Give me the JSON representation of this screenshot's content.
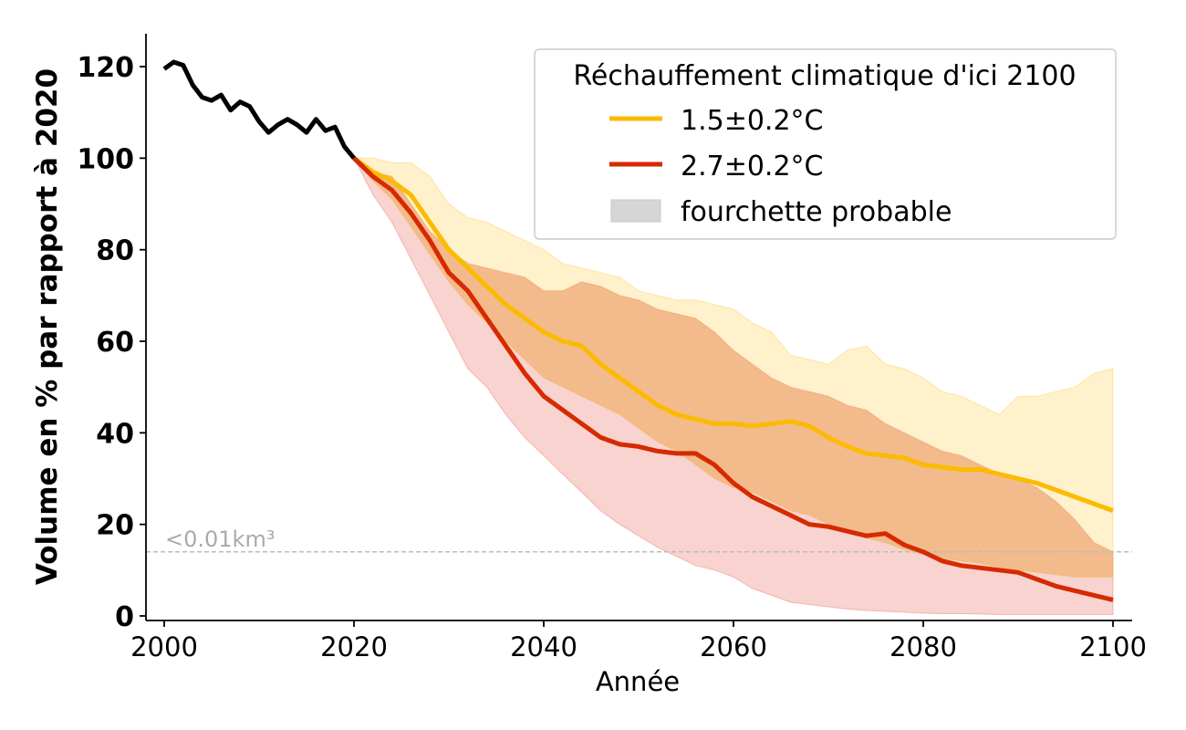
{
  "chart_data": {
    "type": "line",
    "title": "",
    "xlabel": "Année",
    "ylabel": "Volume en % par rapport à 2020",
    "xlim": [
      1998,
      2102
    ],
    "ylim": [
      -1,
      127
    ],
    "xticks": [
      2000,
      2020,
      2040,
      2060,
      2080,
      2100
    ],
    "xtick_labels": [
      "2000",
      "2020",
      "2040",
      "2060",
      "2080",
      "2100"
    ],
    "yticks": [
      0,
      20,
      40,
      60,
      80,
      100,
      120
    ],
    "ytick_labels": [
      "0",
      "20",
      "40",
      "60",
      "80",
      "100",
      "120"
    ],
    "grid": false,
    "legend": {
      "placement": "top-right",
      "title": "Réchauffement climatique d'ici 2100",
      "entries": [
        {
          "label": "1.5±0.2°C",
          "kind": "line",
          "color": "#fbbb00"
        },
        {
          "label": "2.7±0.2°C",
          "kind": "line",
          "color": "#d62a00"
        },
        {
          "label": "fourchette probable",
          "kind": "patch",
          "color": "#d6d6d6"
        }
      ]
    },
    "annotation": {
      "text": "<0.01km³",
      "threshold_value": 14,
      "line_color": "#bbbbbb",
      "text_color": "#aaaaaa"
    },
    "historical": {
      "name": "historique",
      "color": "#000000",
      "x": [
        2000,
        2001,
        2002,
        2003,
        2004,
        2005,
        2006,
        2007,
        2008,
        2009,
        2010,
        2011,
        2012,
        2013,
        2014,
        2015,
        2016,
        2017,
        2018,
        2019,
        2020
      ],
      "values": [
        119.5,
        121,
        120.3,
        116,
        113.3,
        112.6,
        113.8,
        110.5,
        112.3,
        111.3,
        108,
        105.6,
        107.3,
        108.5,
        107.3,
        105.6,
        108.5,
        106,
        106.8,
        102.5,
        100
      ]
    },
    "series": [
      {
        "name": "1.5±0.2°C",
        "color": "#fbbb00",
        "band_color": "#fbbb00",
        "x": [
          2020,
          2022,
          2024,
          2026,
          2028,
          2030,
          2032,
          2034,
          2036,
          2038,
          2040,
          2042,
          2044,
          2046,
          2048,
          2050,
          2052,
          2054,
          2056,
          2058,
          2060,
          2062,
          2064,
          2066,
          2068,
          2070,
          2072,
          2074,
          2076,
          2078,
          2080,
          2082,
          2084,
          2086,
          2088,
          2090,
          2092,
          2094,
          2096,
          2098,
          2100
        ],
        "values": [
          100,
          97,
          95,
          92,
          86,
          80,
          76,
          72,
          68,
          65,
          62,
          60,
          59,
          55,
          52,
          49,
          46,
          44,
          43,
          42,
          42,
          41.5,
          42,
          42.5,
          41.5,
          39,
          37,
          35.5,
          35,
          34.5,
          33,
          32.5,
          32,
          32,
          31,
          30,
          29,
          27.5,
          26,
          24.5,
          23
        ],
        "lower": [
          100,
          95,
          91,
          85,
          79,
          73,
          68,
          64,
          60,
          56,
          52,
          50,
          48,
          46,
          44,
          41,
          38,
          36,
          33,
          30,
          28,
          27,
          25,
          23,
          22,
          20,
          18.5,
          17,
          16,
          14.5,
          13.5,
          12.5,
          12,
          11.5,
          10.5,
          10,
          9.5,
          9,
          8.5,
          8.5,
          8.5
        ],
        "upper": [
          100,
          100,
          99,
          99,
          96,
          90,
          87,
          86,
          84,
          82,
          80,
          77,
          76,
          75,
          74,
          71,
          70,
          69,
          69,
          68,
          67,
          64,
          62,
          57,
          56,
          55,
          58,
          59,
          55,
          54,
          52,
          49,
          48,
          46,
          44,
          48,
          48,
          49,
          50,
          53,
          54
        ]
      },
      {
        "name": "2.7±0.2°C",
        "color": "#d62a00",
        "band_color": "#e0453a",
        "x": [
          2020,
          2022,
          2024,
          2026,
          2028,
          2030,
          2032,
          2034,
          2036,
          2038,
          2040,
          2042,
          2044,
          2046,
          2048,
          2050,
          2052,
          2054,
          2056,
          2058,
          2060,
          2062,
          2064,
          2066,
          2068,
          2070,
          2072,
          2074,
          2076,
          2078,
          2080,
          2082,
          2084,
          2086,
          2088,
          2090,
          2092,
          2094,
          2096,
          2098,
          2100
        ],
        "values": [
          100,
          96,
          93,
          88,
          82,
          75,
          71,
          65,
          59,
          53,
          48,
          45,
          42,
          39,
          37.5,
          37,
          36,
          35.5,
          35.5,
          33,
          29,
          26,
          24,
          22,
          20,
          19.5,
          18.5,
          17.5,
          18,
          15.5,
          14,
          12,
          11,
          10.5,
          10,
          9.5,
          8,
          6.5,
          5.5,
          4.5,
          3.5
        ],
        "lower": [
          100,
          92,
          86,
          78,
          70,
          62,
          54,
          50,
          44,
          39,
          35,
          31,
          27,
          23,
          20,
          17.5,
          15,
          13,
          11,
          10,
          8.5,
          6,
          4.5,
          3,
          2.5,
          2,
          1.5,
          1.2,
          1,
          0.8,
          0.6,
          0.5,
          0.5,
          0.4,
          0.3,
          0.3,
          0.3,
          0.3,
          0.3,
          0.3,
          0.3
        ],
        "upper": [
          100,
          97,
          96,
          90,
          84,
          80,
          77,
          76,
          75,
          74,
          71,
          71,
          73,
          72,
          70,
          69,
          67,
          66,
          65,
          62,
          58,
          55,
          52,
          50,
          49,
          48,
          46,
          45,
          42,
          40,
          38,
          36,
          35,
          33,
          31,
          30,
          28,
          25,
          21,
          16,
          14
        ]
      }
    ]
  }
}
